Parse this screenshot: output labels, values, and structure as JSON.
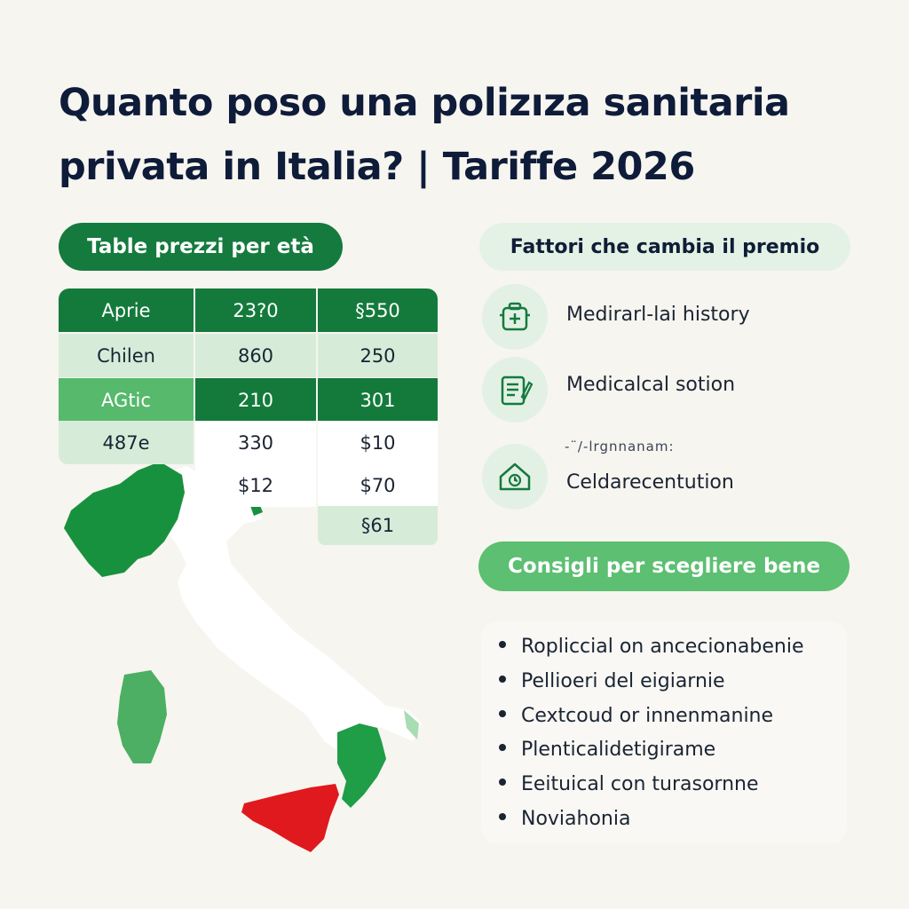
{
  "title": {
    "line1": "Quanto poso una polizıza sanitaria",
    "line2": "privata in Italia? | Tariffe 2026"
  },
  "price_table": {
    "heading": "Table prezzi per età",
    "rows": [
      [
        "Aprie",
        "23?0",
        "§550"
      ],
      [
        "Chilen",
        "860",
        "250"
      ],
      [
        "AGtic",
        "210",
        "301"
      ],
      [
        "487e",
        "330",
        "$10"
      ],
      [
        "",
        "$12",
        "$70"
      ],
      [
        "",
        "",
        "§61"
      ]
    ]
  },
  "factors": {
    "heading": "Fattori che cambia il premio",
    "items": [
      {
        "label": "Medirarl-lai history",
        "icon": "medical-kit-icon"
      },
      {
        "label": "Medicalcal sotion",
        "icon": "clipboard-pen-icon"
      },
      {
        "label": "Celdarecentution",
        "icon": "house-clock-icon",
        "note": "-¨/-lrgnnanam:"
      }
    ]
  },
  "tips": {
    "heading": "Consigli per scegliere bene",
    "items": [
      "Ropliccial on ancecionabenie",
      "Pellioeri del eigiarnie",
      "Cextcoud or innenmanine",
      "Plenticalidetigirame",
      "Eeituical con turasornne",
      "Noviahonia"
    ]
  },
  "colors": {
    "dark_green": "#147a3c",
    "mid_green": "#56b96c",
    "light_green": "#d6ecd9",
    "red": "#e0191e",
    "title": "#0e1c3a",
    "background": "#f7f5ef"
  }
}
